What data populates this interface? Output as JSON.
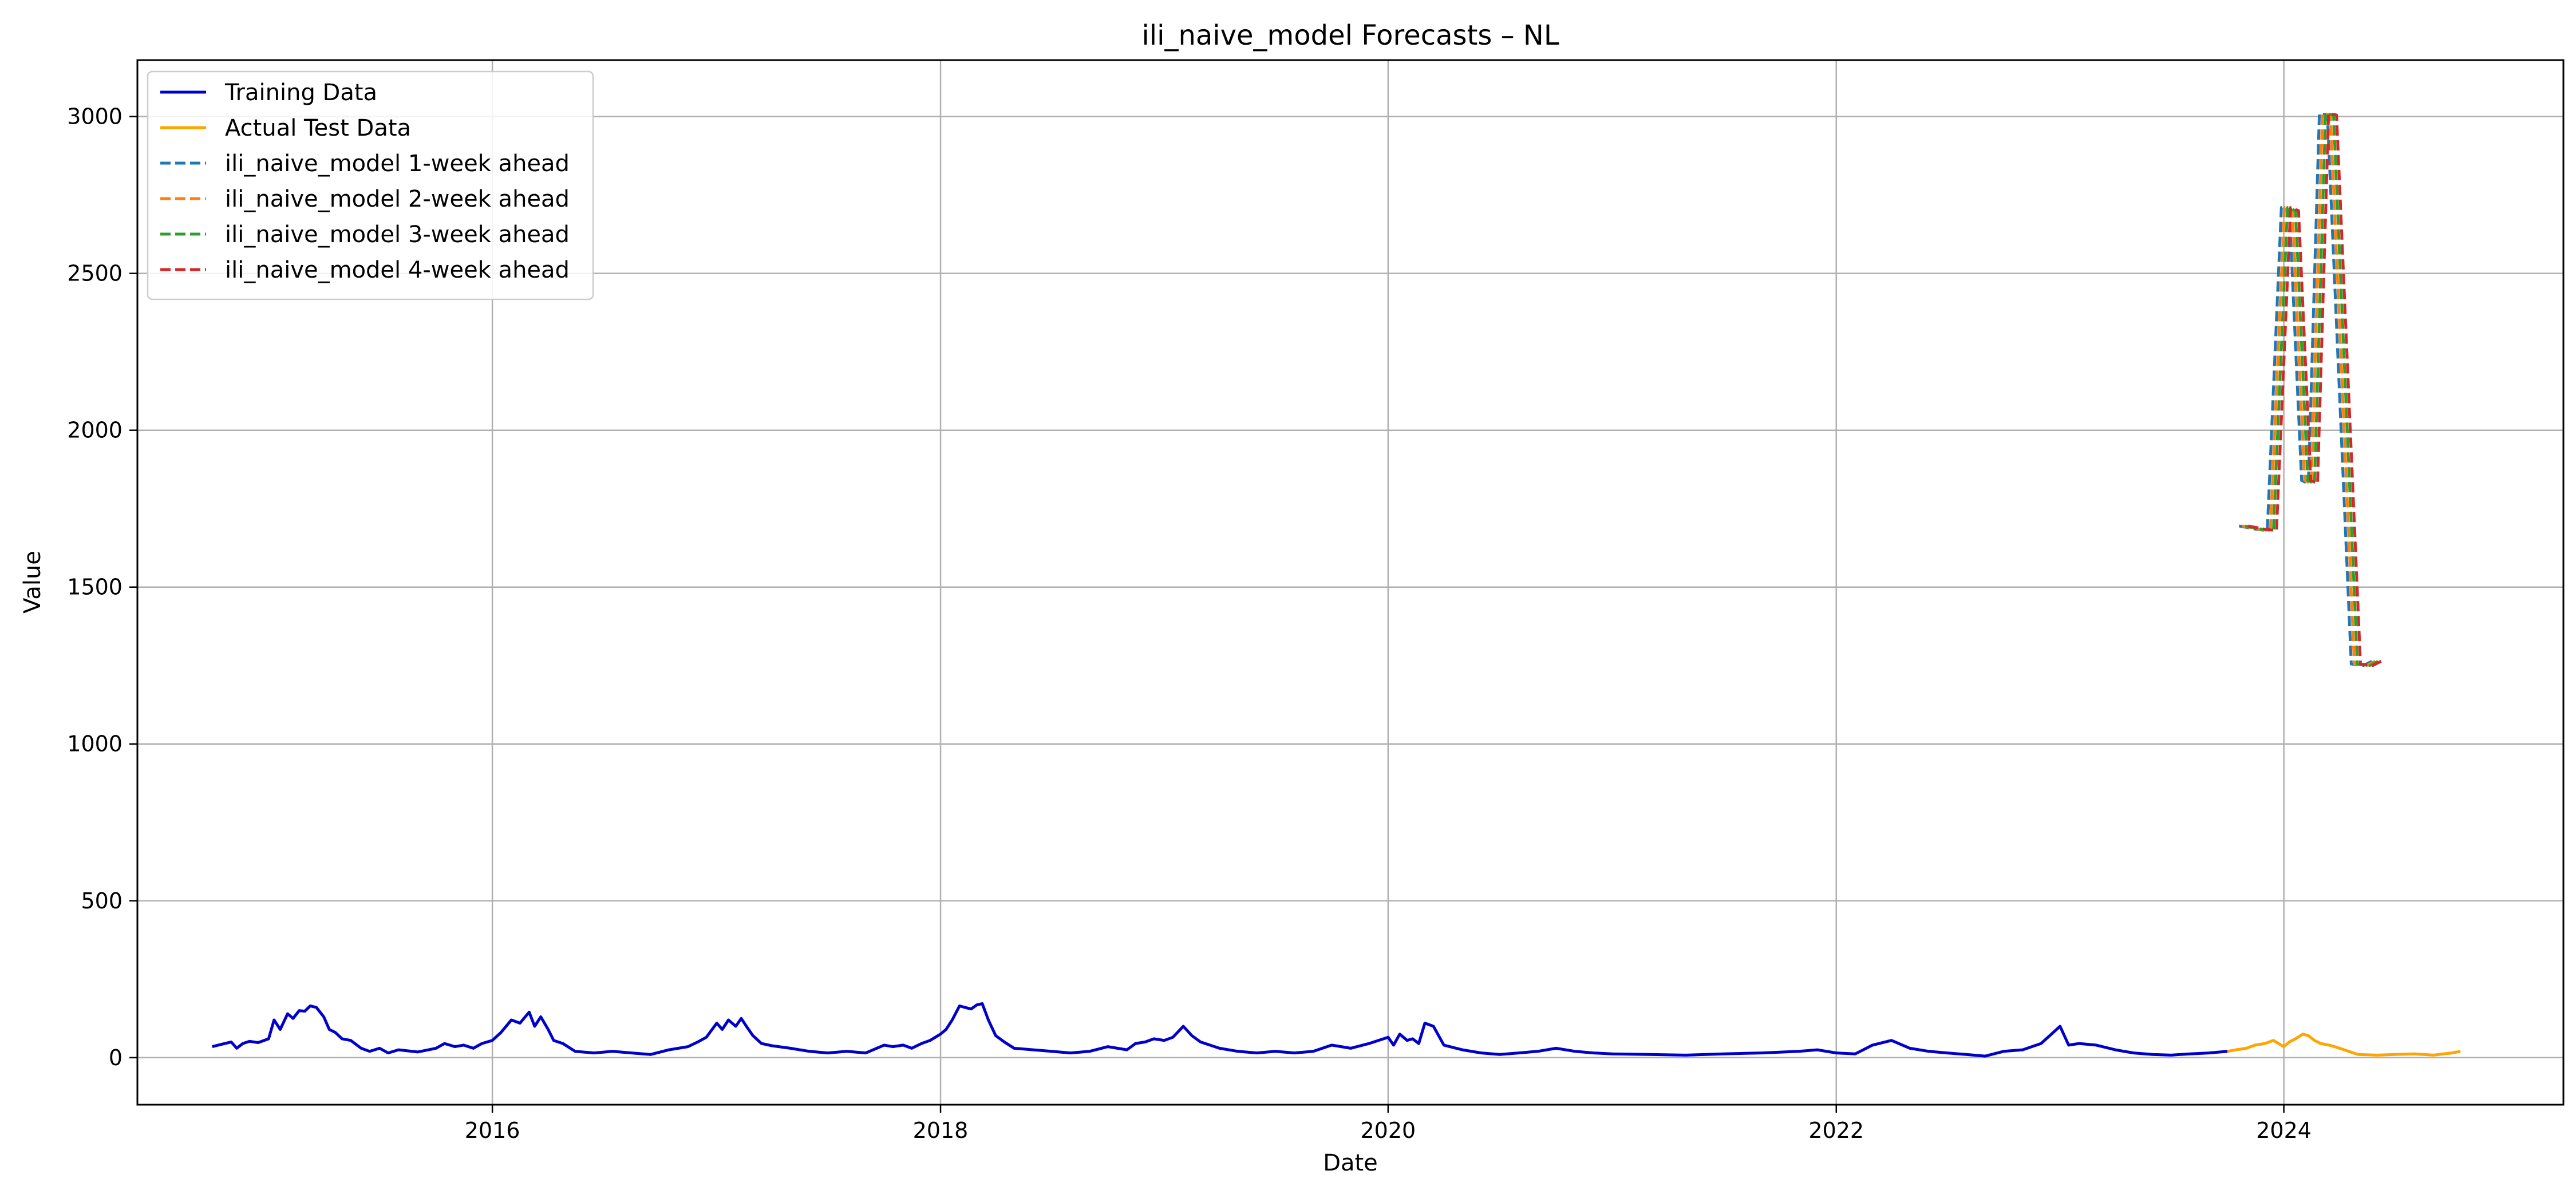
{
  "chart_data": {
    "type": "line",
    "title": "ili_naive_model Forecasts – NL",
    "xlabel": "Date",
    "ylabel": "Value",
    "xlim": [
      "2014-06-01",
      "2025-04-01"
    ],
    "ylim": [
      -150,
      3180
    ],
    "x_ticks": [
      {
        "label": "2016",
        "date": "2016-01-01"
      },
      {
        "label": "2018",
        "date": "2018-01-01"
      },
      {
        "label": "2020",
        "date": "2020-01-01"
      },
      {
        "label": "2022",
        "date": "2022-01-01"
      },
      {
        "label": "2024",
        "date": "2024-01-01"
      }
    ],
    "y_ticks": [
      0,
      500,
      1000,
      1500,
      2000,
      2500,
      3000
    ],
    "grid": true,
    "legend_position": "top-left",
    "series": [
      {
        "name": "Training Data",
        "color": "#0000cc",
        "style": "solid",
        "points": [
          [
            "2014-10-01",
            35
          ],
          [
            "2014-10-15",
            42
          ],
          [
            "2014-11-01",
            50
          ],
          [
            "2014-11-10",
            30
          ],
          [
            "2014-11-20",
            45
          ],
          [
            "2014-12-01",
            52
          ],
          [
            "2014-12-15",
            48
          ],
          [
            "2015-01-01",
            60
          ],
          [
            "2015-01-10",
            120
          ],
          [
            "2015-01-20",
            90
          ],
          [
            "2015-02-01",
            140
          ],
          [
            "2015-02-10",
            125
          ],
          [
            "2015-02-20",
            150
          ],
          [
            "2015-03-01",
            148
          ],
          [
            "2015-03-10",
            165
          ],
          [
            "2015-03-20",
            160
          ],
          [
            "2015-04-01",
            130
          ],
          [
            "2015-04-10",
            90
          ],
          [
            "2015-04-20",
            80
          ],
          [
            "2015-05-01",
            60
          ],
          [
            "2015-05-15",
            55
          ],
          [
            "2015-06-01",
            30
          ],
          [
            "2015-06-15",
            20
          ],
          [
            "2015-07-01",
            30
          ],
          [
            "2015-07-15",
            15
          ],
          [
            "2015-08-01",
            25
          ],
          [
            "2015-09-01",
            18
          ],
          [
            "2015-10-01",
            30
          ],
          [
            "2015-10-15",
            45
          ],
          [
            "2015-11-01",
            35
          ],
          [
            "2015-11-15",
            40
          ],
          [
            "2015-12-01",
            30
          ],
          [
            "2015-12-15",
            45
          ],
          [
            "2016-01-01",
            55
          ],
          [
            "2016-01-15",
            80
          ],
          [
            "2016-02-01",
            120
          ],
          [
            "2016-02-15",
            110
          ],
          [
            "2016-03-01",
            145
          ],
          [
            "2016-03-10",
            100
          ],
          [
            "2016-03-20",
            130
          ],
          [
            "2016-04-01",
            90
          ],
          [
            "2016-04-10",
            55
          ],
          [
            "2016-04-25",
            45
          ],
          [
            "2016-05-15",
            20
          ],
          [
            "2016-06-15",
            15
          ],
          [
            "2016-07-15",
            20
          ],
          [
            "2016-08-15",
            15
          ],
          [
            "2016-09-15",
            10
          ],
          [
            "2016-10-15",
            25
          ],
          [
            "2016-11-15",
            35
          ],
          [
            "2016-12-01",
            50
          ],
          [
            "2016-12-15",
            65
          ],
          [
            "2017-01-01",
            110
          ],
          [
            "2017-01-10",
            90
          ],
          [
            "2017-01-20",
            120
          ],
          [
            "2017-02-01",
            100
          ],
          [
            "2017-02-10",
            125
          ],
          [
            "2017-02-20",
            95
          ],
          [
            "2017-03-01",
            70
          ],
          [
            "2017-03-15",
            45
          ],
          [
            "2017-04-01",
            38
          ],
          [
            "2017-05-01",
            30
          ],
          [
            "2017-06-01",
            20
          ],
          [
            "2017-07-01",
            15
          ],
          [
            "2017-08-01",
            20
          ],
          [
            "2017-09-01",
            15
          ],
          [
            "2017-10-01",
            40
          ],
          [
            "2017-10-15",
            35
          ],
          [
            "2017-11-01",
            40
          ],
          [
            "2017-11-15",
            30
          ],
          [
            "2017-12-01",
            45
          ],
          [
            "2017-12-15",
            55
          ],
          [
            "2018-01-01",
            75
          ],
          [
            "2018-01-10",
            90
          ],
          [
            "2018-01-20",
            120
          ],
          [
            "2018-02-01",
            165
          ],
          [
            "2018-02-10",
            160
          ],
          [
            "2018-02-20",
            155
          ],
          [
            "2018-03-01",
            168
          ],
          [
            "2018-03-10",
            172
          ],
          [
            "2018-03-20",
            120
          ],
          [
            "2018-04-01",
            70
          ],
          [
            "2018-04-15",
            50
          ],
          [
            "2018-05-01",
            30
          ],
          [
            "2018-06-01",
            25
          ],
          [
            "2018-07-01",
            20
          ],
          [
            "2018-08-01",
            15
          ],
          [
            "2018-09-01",
            20
          ],
          [
            "2018-10-01",
            35
          ],
          [
            "2018-11-01",
            25
          ],
          [
            "2018-11-15",
            45
          ],
          [
            "2018-12-01",
            50
          ],
          [
            "2018-12-15",
            60
          ],
          [
            "2019-01-01",
            55
          ],
          [
            "2019-01-15",
            65
          ],
          [
            "2019-02-01",
            100
          ],
          [
            "2019-02-15",
            70
          ],
          [
            "2019-03-01",
            50
          ],
          [
            "2019-04-01",
            30
          ],
          [
            "2019-05-01",
            20
          ],
          [
            "2019-06-01",
            15
          ],
          [
            "2019-07-01",
            20
          ],
          [
            "2019-08-01",
            15
          ],
          [
            "2019-09-01",
            20
          ],
          [
            "2019-10-01",
            40
          ],
          [
            "2019-11-01",
            30
          ],
          [
            "2019-12-01",
            45
          ],
          [
            "2020-01-01",
            65
          ],
          [
            "2020-01-10",
            40
          ],
          [
            "2020-01-20",
            75
          ],
          [
            "2020-02-01",
            55
          ],
          [
            "2020-02-10",
            60
          ],
          [
            "2020-02-20",
            45
          ],
          [
            "2020-03-01",
            110
          ],
          [
            "2020-03-15",
            100
          ],
          [
            "2020-04-01",
            40
          ],
          [
            "2020-05-01",
            25
          ],
          [
            "2020-06-01",
            15
          ],
          [
            "2020-07-01",
            10
          ],
          [
            "2020-08-01",
            15
          ],
          [
            "2020-09-01",
            20
          ],
          [
            "2020-10-01",
            30
          ],
          [
            "2020-11-01",
            20
          ],
          [
            "2020-12-01",
            15
          ],
          [
            "2021-01-01",
            12
          ],
          [
            "2021-03-01",
            10
          ],
          [
            "2021-05-01",
            8
          ],
          [
            "2021-07-01",
            12
          ],
          [
            "2021-09-01",
            15
          ],
          [
            "2021-11-01",
            20
          ],
          [
            "2021-12-01",
            25
          ],
          [
            "2022-01-01",
            15
          ],
          [
            "2022-02-01",
            12
          ],
          [
            "2022-03-01",
            40
          ],
          [
            "2022-04-01",
            55
          ],
          [
            "2022-05-01",
            30
          ],
          [
            "2022-06-01",
            20
          ],
          [
            "2022-07-01",
            15
          ],
          [
            "2022-08-01",
            10
          ],
          [
            "2022-09-01",
            5
          ],
          [
            "2022-10-01",
            20
          ],
          [
            "2022-11-01",
            25
          ],
          [
            "2022-12-01",
            45
          ],
          [
            "2023-01-01",
            100
          ],
          [
            "2023-01-15",
            40
          ],
          [
            "2023-02-01",
            45
          ],
          [
            "2023-03-01",
            40
          ],
          [
            "2023-04-01",
            25
          ],
          [
            "2023-05-01",
            15
          ],
          [
            "2023-06-01",
            10
          ],
          [
            "2023-07-01",
            8
          ],
          [
            "2023-08-01",
            12
          ],
          [
            "2023-09-01",
            15
          ],
          [
            "2023-10-01",
            20
          ]
        ]
      },
      {
        "name": "Actual Test Data",
        "color": "#ffa500",
        "style": "solid",
        "points": [
          [
            "2023-10-01",
            20
          ],
          [
            "2023-10-15",
            25
          ],
          [
            "2023-11-01",
            30
          ],
          [
            "2023-11-15",
            40
          ],
          [
            "2023-12-01",
            45
          ],
          [
            "2023-12-15",
            55
          ],
          [
            "2024-01-01",
            35
          ],
          [
            "2024-01-10",
            50
          ],
          [
            "2024-01-20",
            60
          ],
          [
            "2024-02-01",
            75
          ],
          [
            "2024-02-10",
            70
          ],
          [
            "2024-02-20",
            55
          ],
          [
            "2024-03-01",
            45
          ],
          [
            "2024-03-15",
            40
          ],
          [
            "2024-04-01",
            30
          ],
          [
            "2024-05-01",
            10
          ],
          [
            "2024-06-01",
            8
          ],
          [
            "2024-07-01",
            10
          ],
          [
            "2024-08-01",
            12
          ],
          [
            "2024-09-01",
            8
          ],
          [
            "2024-10-01",
            15
          ],
          [
            "2024-10-15",
            20
          ]
        ]
      },
      {
        "name": "ili_naive_model 1-week ahead",
        "color": "#1f77b4",
        "style": "dashed",
        "points": [
          [
            "2023-10-20",
            1695
          ],
          [
            "2023-11-15",
            1685
          ],
          [
            "2023-12-05",
            1680
          ],
          [
            "2023-12-28",
            2710
          ],
          [
            "2024-01-10",
            2700
          ],
          [
            "2024-01-30",
            1840
          ],
          [
            "2024-02-10",
            1830
          ],
          [
            "2024-02-28",
            3010
          ],
          [
            "2024-03-12",
            3005
          ],
          [
            "2024-04-20",
            1255
          ],
          [
            "2024-05-10",
            1250
          ],
          [
            "2024-05-25",
            1265
          ]
        ]
      },
      {
        "name": "ili_naive_model 2-week ahead",
        "color": "#ff7f0e",
        "style": "dashed",
        "points": [
          [
            "2023-10-25",
            1695
          ],
          [
            "2023-11-20",
            1685
          ],
          [
            "2023-12-10",
            1680
          ],
          [
            "2024-01-02",
            2710
          ],
          [
            "2024-01-15",
            2700
          ],
          [
            "2024-02-04",
            1840
          ],
          [
            "2024-02-15",
            1830
          ],
          [
            "2024-03-04",
            3010
          ],
          [
            "2024-03-17",
            3005
          ],
          [
            "2024-04-25",
            1255
          ],
          [
            "2024-05-15",
            1250
          ],
          [
            "2024-05-30",
            1265
          ]
        ]
      },
      {
        "name": "ili_naive_model 3-week ahead",
        "color": "#2ca02c",
        "style": "dashed",
        "points": [
          [
            "2023-10-30",
            1695
          ],
          [
            "2023-11-25",
            1685
          ],
          [
            "2023-12-15",
            1680
          ],
          [
            "2024-01-07",
            2710
          ],
          [
            "2024-01-20",
            2700
          ],
          [
            "2024-02-09",
            1840
          ],
          [
            "2024-02-20",
            1830
          ],
          [
            "2024-03-09",
            3010
          ],
          [
            "2024-03-22",
            3005
          ],
          [
            "2024-04-30",
            1255
          ],
          [
            "2024-05-20",
            1250
          ],
          [
            "2024-06-04",
            1265
          ]
        ]
      },
      {
        "name": "ili_naive_model 4-week ahead",
        "color": "#d62728",
        "style": "dashed",
        "points": [
          [
            "2023-11-04",
            1695
          ],
          [
            "2023-11-30",
            1685
          ],
          [
            "2023-12-20",
            1680
          ],
          [
            "2024-01-12",
            2710
          ],
          [
            "2024-01-25",
            2700
          ],
          [
            "2024-02-14",
            1840
          ],
          [
            "2024-02-25",
            1830
          ],
          [
            "2024-03-14",
            3010
          ],
          [
            "2024-03-27",
            3005
          ],
          [
            "2024-05-05",
            1255
          ],
          [
            "2024-05-25",
            1250
          ],
          [
            "2024-06-09",
            1265
          ]
        ]
      }
    ]
  }
}
